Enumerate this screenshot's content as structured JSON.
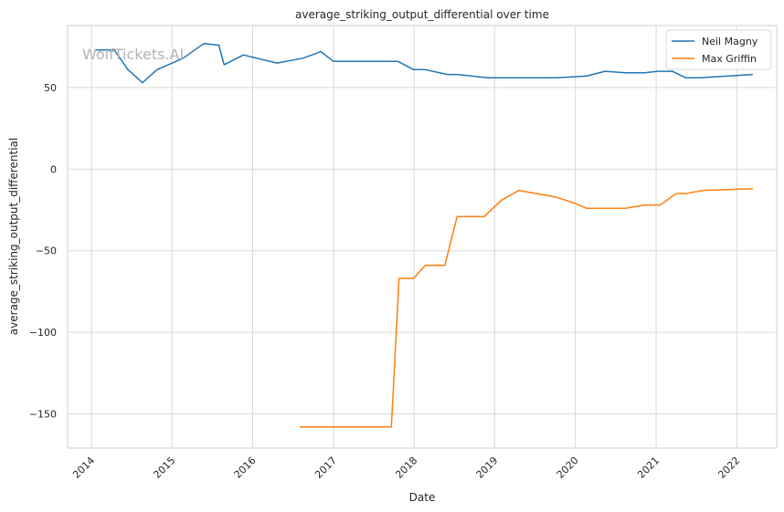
{
  "chart_data": {
    "type": "line",
    "title": "average_striking_output_differential over time",
    "xlabel": "Date",
    "ylabel": "average_striking_output_differential",
    "xlim": [
      "2013-09-15",
      "2022-07-01"
    ],
    "ylim": [
      -171,
      88
    ],
    "x_ticks": [
      {
        "label": "2014",
        "date": "2014-01-01"
      },
      {
        "label": "2015",
        "date": "2015-01-01"
      },
      {
        "label": "2016",
        "date": "2016-01-01"
      },
      {
        "label": "2017",
        "date": "2017-01-01"
      },
      {
        "label": "2018",
        "date": "2018-01-01"
      },
      {
        "label": "2019",
        "date": "2019-01-01"
      },
      {
        "label": "2020",
        "date": "2020-01-01"
      },
      {
        "label": "2021",
        "date": "2021-01-01"
      },
      {
        "label": "2022",
        "date": "2022-01-01"
      }
    ],
    "y_ticks": [
      50,
      0,
      -50,
      -100,
      -150
    ],
    "y_tick_labels": [
      "50",
      "0",
      "−50",
      "−100",
      "−150"
    ],
    "grid": true,
    "legend_position": "top-right",
    "watermark": "WolfTickets.AI",
    "series": [
      {
        "name": "Neil Magny",
        "color": "#1f77b4",
        "points": [
          [
            "2014-01-15",
            73
          ],
          [
            "2014-04-15",
            73
          ],
          [
            "2014-06-15",
            61
          ],
          [
            "2014-08-20",
            53
          ],
          [
            "2014-10-25",
            61
          ],
          [
            "2015-02-20",
            68
          ],
          [
            "2015-05-25",
            77
          ],
          [
            "2015-08-01",
            76
          ],
          [
            "2015-08-25",
            64
          ],
          [
            "2015-11-20",
            70
          ],
          [
            "2016-04-20",
            65
          ],
          [
            "2016-08-15",
            68
          ],
          [
            "2016-11-05",
            72
          ],
          [
            "2017-01-01",
            66
          ],
          [
            "2017-10-20",
            66
          ],
          [
            "2017-12-30",
            61
          ],
          [
            "2018-02-20",
            61
          ],
          [
            "2018-06-01",
            58
          ],
          [
            "2018-07-15",
            58
          ],
          [
            "2018-12-01",
            56
          ],
          [
            "2019-06-01",
            56
          ],
          [
            "2019-10-01",
            56
          ],
          [
            "2020-02-20",
            57
          ],
          [
            "2020-05-15",
            60
          ],
          [
            "2020-08-15",
            59
          ],
          [
            "2020-11-10",
            59
          ],
          [
            "2021-01-10",
            60
          ],
          [
            "2021-03-15",
            60
          ],
          [
            "2021-05-15",
            56
          ],
          [
            "2021-07-15",
            56
          ],
          [
            "2022-03-15",
            58
          ]
        ]
      },
      {
        "name": "Max Griffin",
        "color": "#ff7f0e",
        "points": [
          [
            "2016-08-01",
            -158
          ],
          [
            "2017-09-20",
            -158
          ],
          [
            "2017-10-25",
            -67
          ],
          [
            "2017-12-30",
            -67
          ],
          [
            "2018-02-20",
            -59
          ],
          [
            "2018-05-20",
            -59
          ],
          [
            "2018-07-15",
            -29
          ],
          [
            "2018-11-15",
            -29
          ],
          [
            "2019-02-01",
            -19
          ],
          [
            "2019-04-20",
            -13
          ],
          [
            "2019-10-01",
            -17
          ],
          [
            "2020-01-01",
            -21
          ],
          [
            "2020-02-20",
            -24
          ],
          [
            "2020-08-15",
            -24
          ],
          [
            "2020-11-10",
            -22
          ],
          [
            "2021-01-20",
            -22
          ],
          [
            "2021-04-01",
            -15
          ],
          [
            "2021-05-15",
            -15
          ],
          [
            "2021-08-01",
            -13
          ],
          [
            "2022-03-15",
            -12
          ]
        ]
      }
    ]
  }
}
